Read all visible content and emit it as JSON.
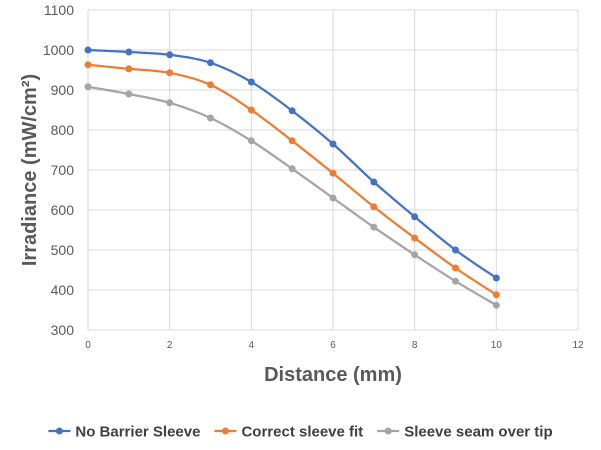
{
  "chart_data": {
    "type": "line",
    "title": "",
    "xlabel": "Distance (mm)",
    "ylabel": "Irradiance (mW/cm²)",
    "xlim": [
      0,
      12
    ],
    "ylim": [
      300,
      1100
    ],
    "x_ticks": [
      0,
      2,
      4,
      6,
      8,
      10,
      12
    ],
    "y_ticks": [
      300,
      400,
      500,
      600,
      700,
      800,
      900,
      1000,
      1100
    ],
    "grid": true,
    "legend_position": "bottom",
    "x": [
      0,
      1,
      2,
      3,
      4,
      5,
      6,
      7,
      8,
      9,
      10
    ],
    "series": [
      {
        "name": "No Barrier Sleeve",
        "color": "#4472C4",
        "values": [
          1000,
          995,
          988,
          968,
          920,
          848,
          765,
          670,
          583,
          500,
          430
        ]
      },
      {
        "name": "Correct sleeve fit",
        "color": "#ED7D31",
        "values": [
          963,
          953,
          943,
          913,
          850,
          773,
          692,
          608,
          530,
          455,
          388
        ]
      },
      {
        "name": "Sleeve seam over tip",
        "color": "#A5A5A5",
        "values": [
          908,
          890,
          868,
          830,
          773,
          703,
          630,
          557,
          488,
          422,
          362
        ]
      }
    ]
  }
}
